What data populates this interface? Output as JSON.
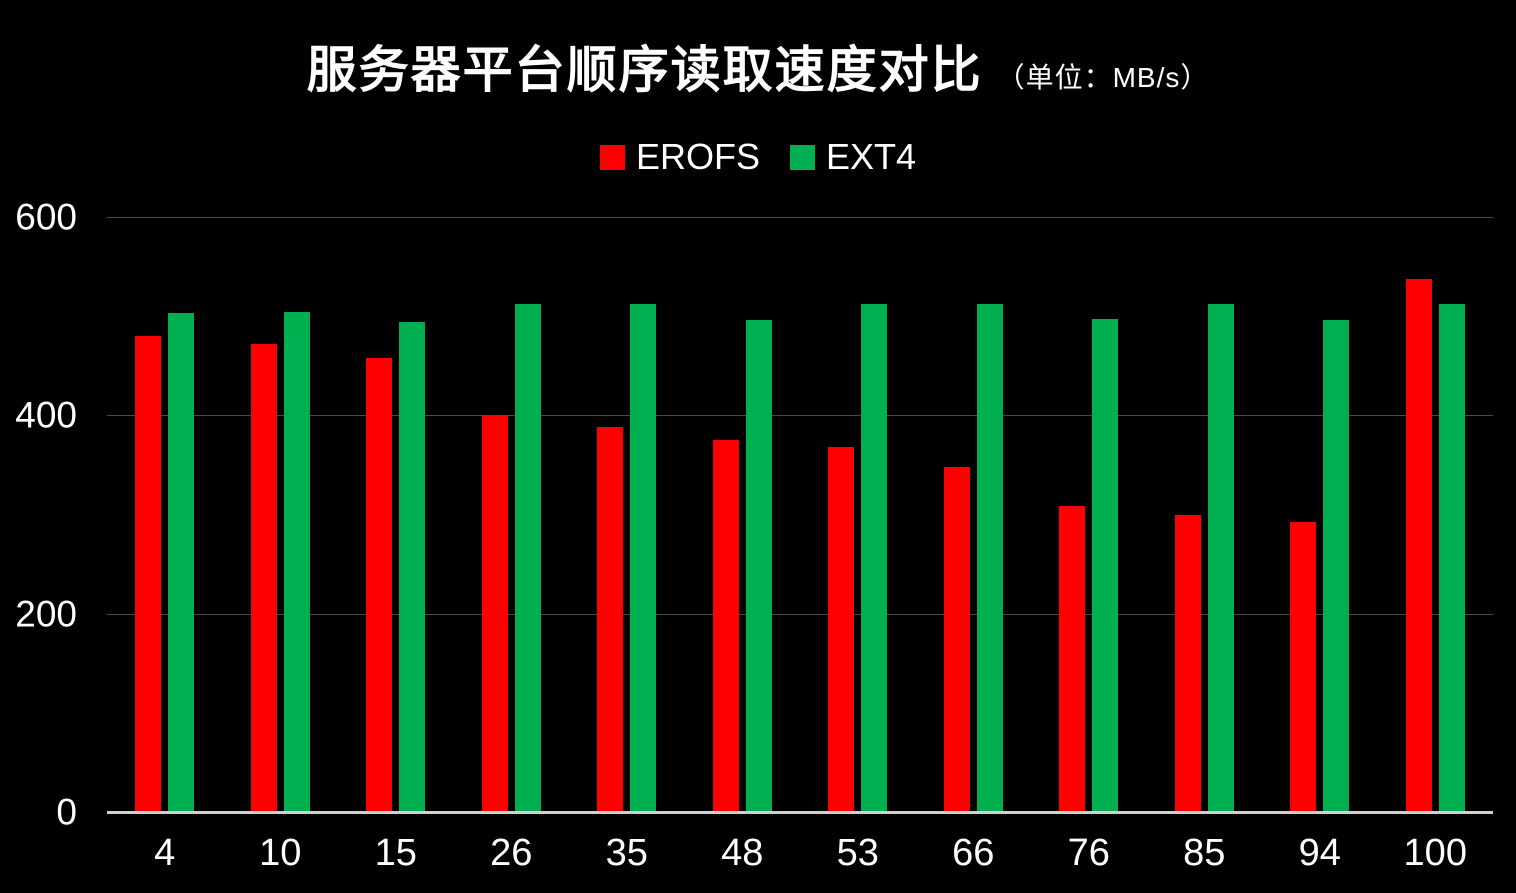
{
  "title": {
    "main": "服务器平台顺序读取速度对比",
    "unit": "（单位：MB/s）"
  },
  "legend": [
    {
      "label": "EROFS",
      "color": "#ff0000"
    },
    {
      "label": "EXT4",
      "color": "#00b050"
    }
  ],
  "colors": {
    "background": "#000000",
    "text": "#ffffff",
    "gridline": "#4a4a4a",
    "axis_line": "#d0d0d0",
    "erofs_red": "#ff0000",
    "ext4_green": "#00b050"
  },
  "chart_data": {
    "type": "bar",
    "title": "服务器平台顺序读取速度对比",
    "subtitle": "（单位：MB/s）",
    "categories": [
      "4",
      "10",
      "15",
      "26",
      "35",
      "48",
      "53",
      "66",
      "76",
      "85",
      "94",
      "100"
    ],
    "series": [
      {
        "name": "EROFS",
        "color": "#ff0000",
        "values": [
          480,
          472,
          458,
          400,
          388,
          375,
          368,
          348,
          309,
          300,
          292,
          537
        ]
      },
      {
        "name": "EXT4",
        "color": "#00b050",
        "values": [
          503,
          504,
          494,
          512,
          512,
          496,
          512,
          512,
          497,
          512,
          496,
          512
        ]
      }
    ],
    "xlabel": "",
    "ylabel": "",
    "ylim": [
      0,
      600
    ],
    "y_ticks": [
      0,
      200,
      400,
      600
    ],
    "grid": true,
    "legend_position": "top",
    "background": "black"
  }
}
